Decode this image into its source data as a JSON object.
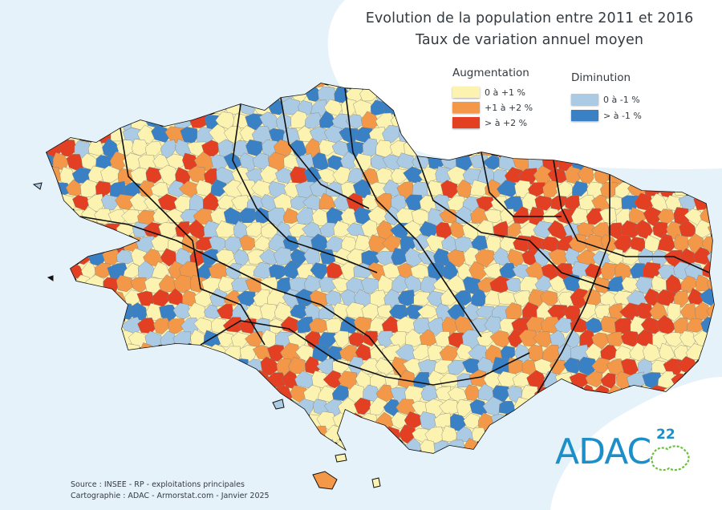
{
  "title": {
    "line1": "Evolution de la population entre 2011 et 2016",
    "line2": "Taux de variation annuel moyen"
  },
  "legend": {
    "increase": {
      "heading": "Augmentation",
      "items": [
        {
          "label": "0 à +1 %",
          "color": "#fdf3b1"
        },
        {
          "label": "+1 à +2 %",
          "color": "#f39848"
        },
        {
          "label": "> à +2 %",
          "color": "#e33f22"
        }
      ]
    },
    "decrease": {
      "heading": "Diminution",
      "items": [
        {
          "label": "0 à -1 %",
          "color": "#abcbe5"
        },
        {
          "label": "> à -1 %",
          "color": "#3a80c4"
        }
      ]
    }
  },
  "source": {
    "line1": "Source : INSEE - RP - exploitations principales",
    "line2": "Cartographie : ADAC - Armorstat.com - Janvier 2025"
  },
  "logo": {
    "text": "ADAC",
    "superscript": "22",
    "color": "#1d8fc8"
  },
  "colors": {
    "sea": "#e6f2fa",
    "border": "#111111"
  }
}
